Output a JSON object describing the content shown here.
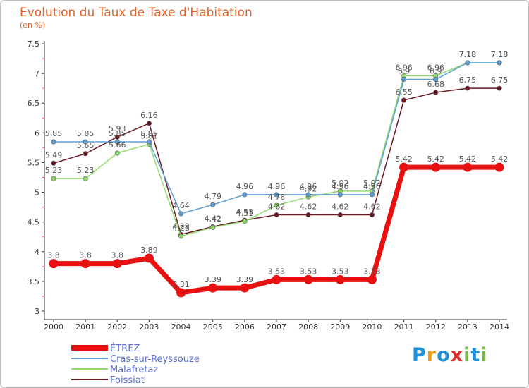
{
  "header": {
    "title": "Evolution du Taux de Taxe d'Habitation",
    "unit": "(en %)"
  },
  "logo": {
    "letters": [
      "P",
      "r",
      "o",
      "x",
      "i",
      "t",
      "i"
    ],
    "colors": [
      "#1f8fd6",
      "#f39c12",
      "#1f8fd6",
      "#d9302c",
      "#7ab648",
      "#1f8fd6",
      "#7ab648"
    ]
  },
  "chart_data": {
    "type": "line",
    "x": [
      "2000",
      "2001",
      "2002",
      "2003",
      "2004",
      "2005",
      "2006",
      "2007",
      "2008",
      "2009",
      "2010",
      "2011",
      "2012",
      "2013",
      "2014"
    ],
    "ylim": [
      3,
      7.5
    ],
    "yticks": [
      "3",
      "3.5",
      "4",
      "4.5",
      "5",
      "5.5",
      "6",
      "6.5",
      "7",
      "7.5"
    ],
    "grid": false,
    "legend_position": "bottom-left",
    "series": [
      {
        "name": "ÉTREZ",
        "color": "#e81010",
        "values": [
          3.8,
          3.8,
          3.8,
          3.89,
          3.31,
          3.39,
          3.39,
          3.53,
          3.53,
          3.53,
          3.53,
          5.42,
          5.42,
          5.42,
          5.42
        ],
        "labels": [
          "3.8",
          "3.8",
          "3.8",
          "3.89",
          "3.31",
          "3.39",
          "3.39",
          "3.53",
          "3.53",
          "3.53",
          "3.53",
          "5.42",
          "5.42",
          "5.42",
          "5.42"
        ]
      },
      {
        "name": "Cras-sur-Reyssouze",
        "color": "#5f9fd6",
        "values": [
          5.85,
          5.85,
          5.85,
          5.85,
          4.64,
          4.79,
          4.96,
          4.96,
          4.96,
          4.96,
          4.96,
          6.9,
          6.9,
          7.18,
          7.18
        ],
        "labels": [
          "5.85",
          "5.85",
          "5.85",
          "5.85",
          "4.64",
          "4.79",
          "4.96",
          "4.96",
          "4.96",
          "4.96",
          "4.96",
          "6.9",
          "6.9",
          "7.18",
          "7.18"
        ]
      },
      {
        "name": "Malafretaz",
        "color": "#8fdc6c",
        "values": [
          5.23,
          5.23,
          5.66,
          5.81,
          4.26,
          4.41,
          4.51,
          4.78,
          4.92,
          5.02,
          5.02,
          6.96,
          6.96,
          7.18,
          7.18
        ],
        "labels": [
          "5.23",
          "5.23",
          "5.66",
          "5.81",
          "4.26",
          "4.41",
          "4.51",
          "4.78",
          "4.92",
          "5.02",
          "5.02",
          "6.96",
          "6.96",
          "7.18",
          "7.18"
        ]
      },
      {
        "name": "Foissiat",
        "color": "#6a1a22",
        "values": [
          5.49,
          5.65,
          5.93,
          6.16,
          4.29,
          4.42,
          4.53,
          4.62,
          4.62,
          4.62,
          4.62,
          6.55,
          6.68,
          6.75,
          6.75
        ],
        "labels": [
          "5.49",
          "5.65",
          "5.93",
          "6.16",
          "4.29",
          "4.42",
          "4.53",
          "4.62",
          "4.62",
          "4.62",
          "4.62",
          "6.55",
          "6.68",
          "6.75",
          "6.75"
        ]
      }
    ]
  }
}
